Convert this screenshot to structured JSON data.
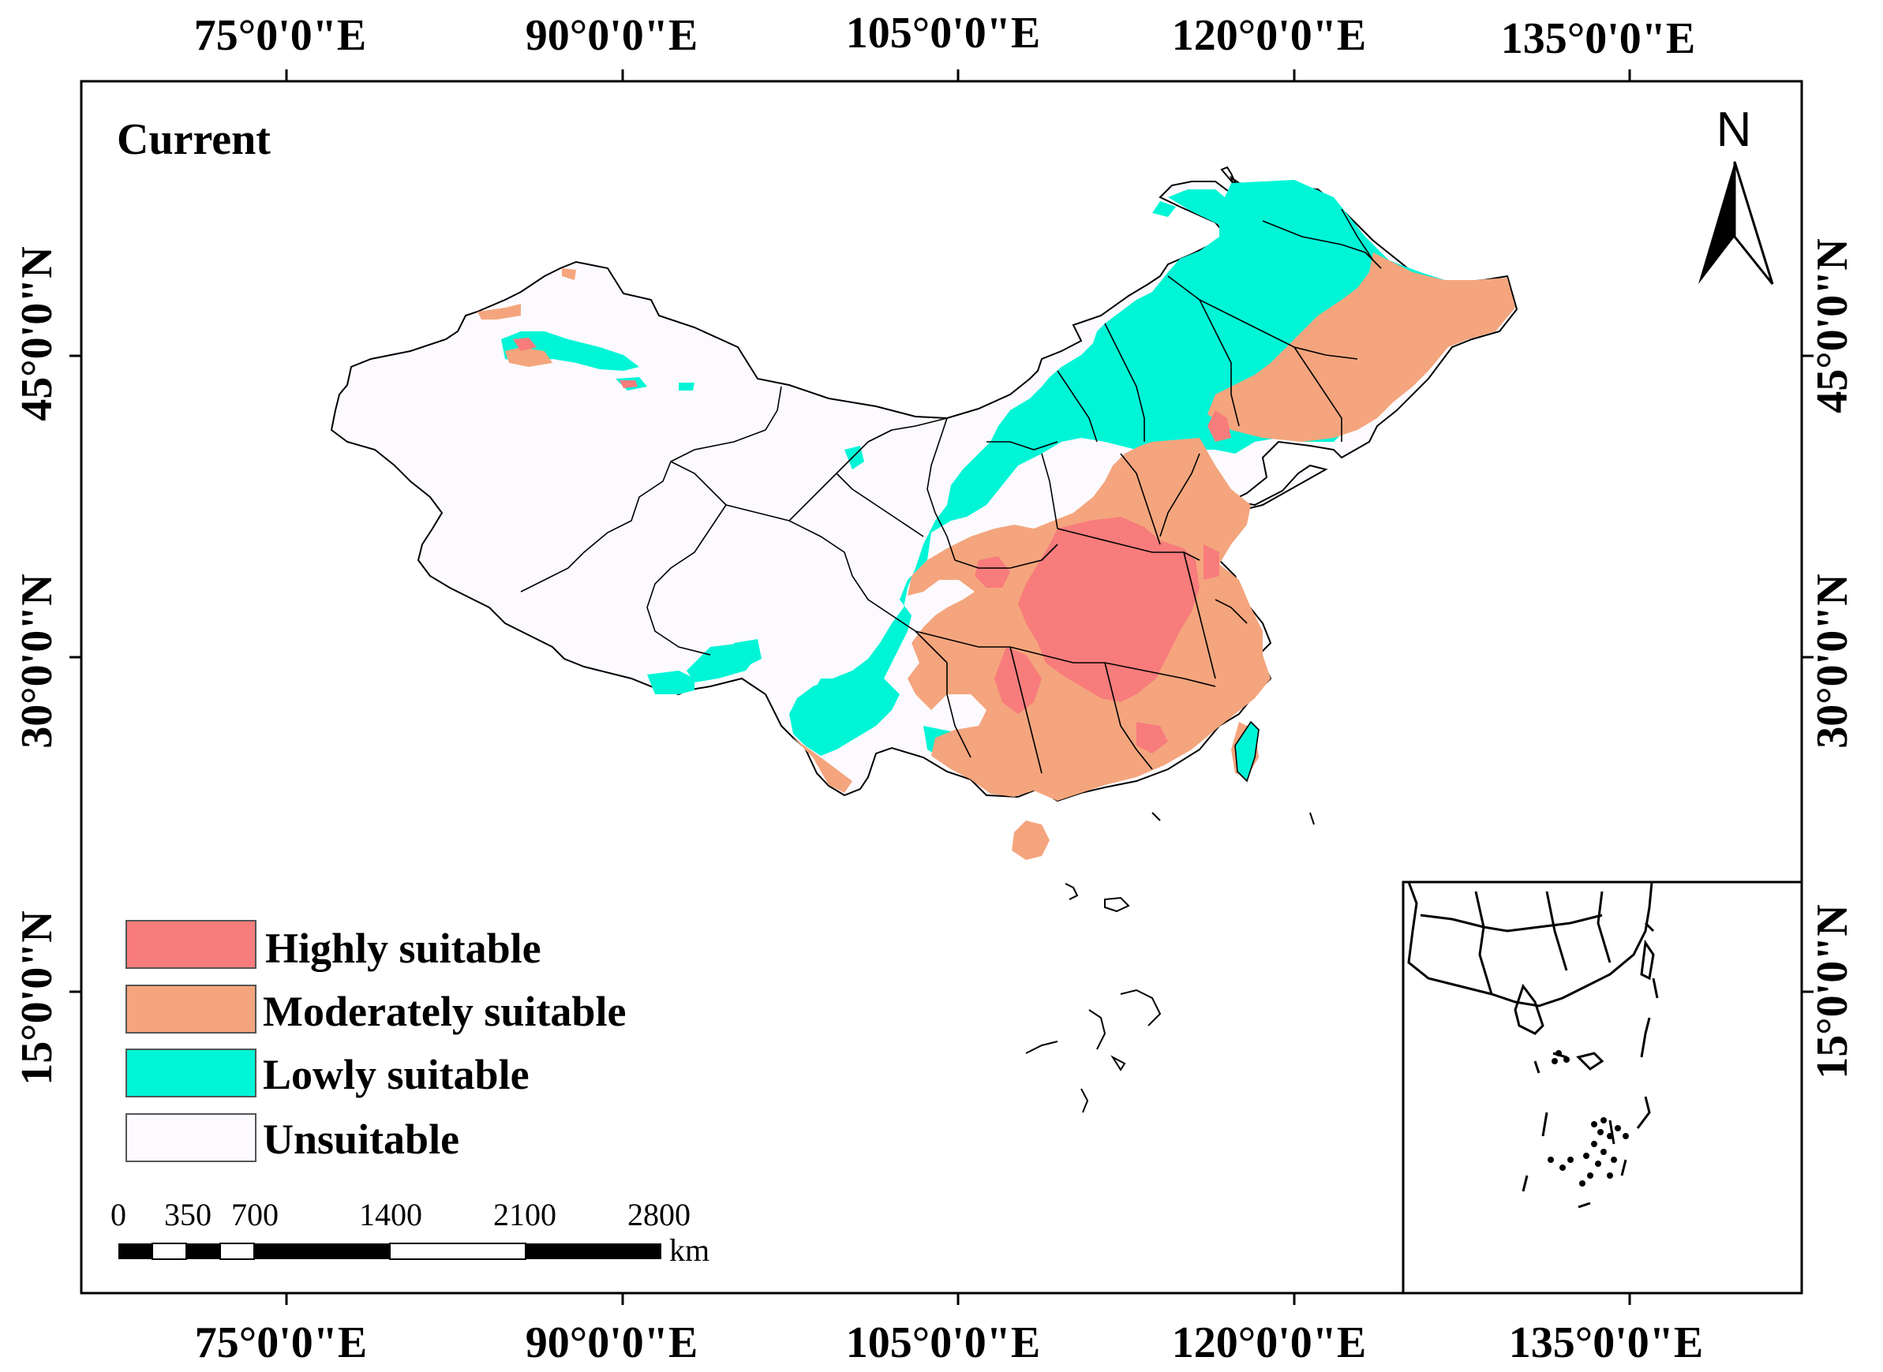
{
  "map": {
    "title": "Current",
    "north_label": "N",
    "lon_labels": [
      "75°0'0\"E",
      "90°0'0\"E",
      "105°0'0\"E",
      "120°0'0\"E",
      "135°0'0\"E"
    ],
    "lat_labels": [
      "45°0'0\"N",
      "30°0'0\"N",
      "15°0'0\"N"
    ],
    "legend": [
      {
        "label": "Highly suitable",
        "color": "#F87C7C"
      },
      {
        "label": "Moderately suitable",
        "color": "#F4A57D"
      },
      {
        "label": "Lowly suitable",
        "color": "#00F5D6"
      },
      {
        "label": "Unsuitable",
        "color": "#FCFAFE"
      }
    ],
    "scale_bar": {
      "ticks": [
        "0",
        "350",
        "700",
        "1400",
        "2100",
        "2800"
      ],
      "unit": "km"
    }
  }
}
